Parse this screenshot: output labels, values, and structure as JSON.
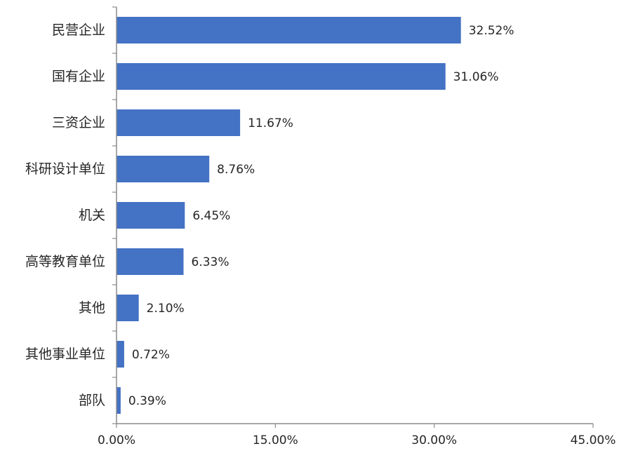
{
  "chart_data": {
    "type": "bar",
    "orientation": "horizontal",
    "categories": [
      "民营企业",
      "国有企业",
      "三资企业",
      "科研设计单位",
      "机关",
      "高等教育单位",
      "其他",
      "其他事业单位",
      "部队"
    ],
    "values": [
      32.52,
      31.06,
      11.67,
      8.76,
      6.45,
      6.33,
      2.1,
      0.72,
      0.39
    ],
    "value_labels": [
      "32.52%",
      "31.06%",
      "11.67%",
      "8.76%",
      "6.45%",
      "6.33%",
      "2.10%",
      "0.72%",
      "0.39%"
    ],
    "x_ticks": [
      0,
      15,
      30,
      45
    ],
    "x_tick_labels": [
      "0.00%",
      "15.00%",
      "30.00%",
      "45.00%"
    ],
    "xlim": [
      0,
      45
    ],
    "title": "",
    "xlabel": "",
    "ylabel": "",
    "grid": false,
    "legend": "none",
    "bar_color": "#4472C4",
    "axis_color": "#8c8c8c",
    "text_color": "#262626"
  }
}
